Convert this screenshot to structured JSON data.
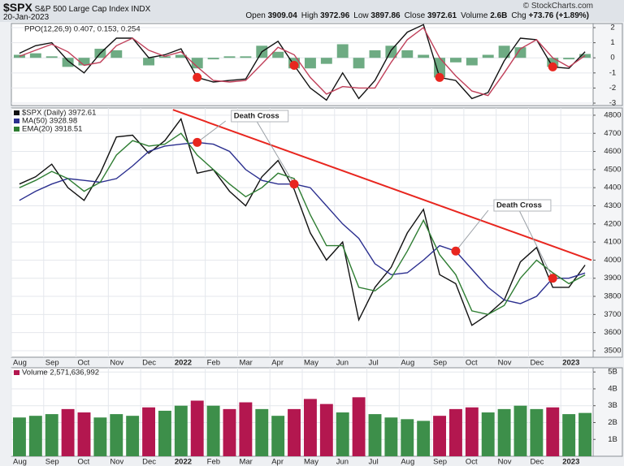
{
  "header": {
    "symbol": "$SPX",
    "name": "S&P 500 Large Cap Index",
    "exchange": "INDX",
    "date": "20-Jan-2023",
    "copyright": "© StockCharts.com",
    "quote": [
      {
        "label": "Open",
        "value": "3909.04"
      },
      {
        "label": "High",
        "value": "3972.96"
      },
      {
        "label": "Low",
        "value": "3897.86"
      },
      {
        "label": "Close",
        "value": "3972.61"
      },
      {
        "label": "Volume",
        "value": "2.6B"
      },
      {
        "label": "Chg",
        "value": "+73.76 (+1.89%)"
      }
    ]
  },
  "chart_data": [
    {
      "type": "line",
      "title": "PPO(12,26,9) 0.407, 0.153, 0.254",
      "ylim": [
        -3.16,
        2.27
      ],
      "yticks": [
        2,
        1,
        0,
        -1,
        -2,
        -3
      ],
      "grid": true,
      "markers": [
        11,
        17,
        26,
        33
      ],
      "marker_color": "#e8261f",
      "series": [
        {
          "name": "PPO",
          "style": "line",
          "color": "#111111",
          "values": [
            0.3,
            0.8,
            1.0,
            -0.2,
            -1.0,
            0.3,
            1.3,
            1.3,
            0.0,
            0.2,
            0.6,
            -1.3,
            -1.6,
            -1.5,
            -1.4,
            0.4,
            1.1,
            -0.5,
            -2.0,
            -2.8,
            -1.0,
            -2.7,
            -1.5,
            0.5,
            1.7,
            2.2,
            -1.3,
            -1.5,
            -2.7,
            -2.3,
            -0.2,
            1.3,
            1.2,
            -0.6,
            -0.7,
            0.407
          ]
        },
        {
          "name": "Signal",
          "style": "line",
          "color": "#c0405a",
          "values": [
            0.1,
            0.5,
            0.9,
            0.4,
            -0.5,
            -0.3,
            0.8,
            1.3,
            0.5,
            0.1,
            0.4,
            -0.6,
            -1.5,
            -1.6,
            -1.5,
            -0.4,
            0.7,
            0.2,
            -1.3,
            -2.4,
            -1.9,
            -2.0,
            -2.0,
            -0.3,
            1.2,
            2.0,
            0.0,
            -1.2,
            -2.2,
            -2.5,
            -1.0,
            0.6,
            1.2,
            0.0,
            -0.6,
            0.153
          ]
        },
        {
          "name": "Histogram",
          "style": "histogram",
          "color": "#3d8f5a",
          "values": [
            0.2,
            0.3,
            0.1,
            -0.6,
            -0.5,
            0.6,
            0.5,
            0,
            -0.5,
            0.1,
            0.2,
            -0.7,
            -0.1,
            0.1,
            0.1,
            0.8,
            0.4,
            -0.7,
            -0.7,
            -0.4,
            0.9,
            -0.7,
            0.5,
            0.8,
            0.5,
            0.2,
            -1.3,
            -0.3,
            -0.5,
            0.2,
            0.8,
            0.7,
            0,
            -0.6,
            -0.1,
            0.254
          ]
        }
      ]
    },
    {
      "type": "line",
      "title": "$SPX (Daily) 3972.61",
      "categories": [
        "Aug",
        null,
        "Sep",
        null,
        "Oct",
        null,
        "Nov",
        null,
        "Dec",
        null,
        "2022",
        null,
        "Feb",
        null,
        "Mar",
        null,
        "Apr",
        null,
        "May",
        null,
        "Jun",
        null,
        "Jul",
        null,
        "Aug",
        null,
        "Sep",
        null,
        "Oct",
        null,
        "Nov",
        null,
        "Dec",
        null,
        "2023",
        null
      ],
      "ylim": [
        3464,
        4840
      ],
      "yticks": [
        3500,
        3600,
        3700,
        3800,
        3900,
        4000,
        4100,
        4200,
        4300,
        4400,
        4500,
        4600,
        4700,
        4800
      ],
      "grid": true,
      "series": [
        {
          "name": "$SPX (Daily) 3972.61",
          "color": "#111111",
          "values": [
            4420,
            4460,
            4530,
            4400,
            4330,
            4480,
            4680,
            4690,
            4590,
            4660,
            4780,
            4480,
            4500,
            4380,
            4300,
            4460,
            4550,
            4390,
            4150,
            4000,
            4100,
            3670,
            3850,
            3960,
            4150,
            4280,
            3920,
            3870,
            3640,
            3700,
            3780,
            3990,
            4070,
            3850,
            3850,
            3972.61
          ]
        },
        {
          "name": "MA(50) 3928.98",
          "color": "#2b2f8f",
          "values": [
            4330,
            4380,
            4420,
            4450,
            4440,
            4430,
            4450,
            4520,
            4600,
            4630,
            4640,
            4650,
            4640,
            4600,
            4500,
            4440,
            4420,
            4420,
            4400,
            4300,
            4200,
            4120,
            3980,
            3920,
            3930,
            4000,
            4080,
            4050,
            3950,
            3850,
            3780,
            3760,
            3800,
            3900,
            3900,
            3928.98
          ]
        },
        {
          "name": "EMA(20) 3918.51",
          "color": "#2e7d32",
          "values": [
            4400,
            4440,
            4490,
            4450,
            4380,
            4430,
            4580,
            4660,
            4630,
            4640,
            4700,
            4580,
            4500,
            4420,
            4350,
            4400,
            4480,
            4450,
            4250,
            4080,
            4080,
            3850,
            3830,
            3900,
            4050,
            4220,
            4030,
            3920,
            3720,
            3700,
            3750,
            3900,
            4000,
            3930,
            3870,
            3918.51
          ]
        }
      ],
      "trendline": {
        "x": [
          9.5,
          35.4
        ],
        "y": [
          4830,
          4000
        ],
        "color": "#e8261f"
      },
      "annotations": [
        {
          "text": "Death Cross",
          "points": [
            11,
            17
          ]
        },
        {
          "text": "Death Cross",
          "points": [
            27,
            33
          ]
        }
      ],
      "marker_color": "#e8261f"
    },
    {
      "type": "bar",
      "title": "Volume 2,571,636,992",
      "categories": [
        "Aug",
        null,
        "Sep",
        null,
        "Oct",
        null,
        "Nov",
        null,
        "Dec",
        null,
        "2022",
        null,
        "Feb",
        null,
        "Mar",
        null,
        "Apr",
        null,
        "May",
        null,
        "Jun",
        null,
        "Jul",
        null,
        "Aug",
        null,
        "Sep",
        null,
        "Oct",
        null,
        "Nov",
        null,
        "Dec",
        null,
        "2023",
        null
      ],
      "ylim": [
        0,
        5.25
      ],
      "yticks": [
        {
          "value": 1,
          "label": "1B"
        },
        {
          "value": 2,
          "label": "2B"
        },
        {
          "value": 3,
          "label": "3B"
        },
        {
          "value": 4,
          "label": "4B"
        },
        {
          "value": 5,
          "label": "5B"
        }
      ],
      "grid": true,
      "up_color": "#3d8f4a",
      "down_color": "#b3174f",
      "values": [
        2.3,
        2.4,
        2.5,
        2.8,
        2.6,
        2.3,
        2.5,
        2.4,
        2.9,
        2.7,
        3.0,
        3.3,
        3.0,
        2.8,
        3.2,
        2.8,
        2.4,
        2.8,
        3.4,
        3.1,
        2.6,
        3.5,
        2.5,
        2.3,
        2.2,
        2.1,
        2.4,
        2.8,
        2.9,
        2.6,
        2.8,
        3.0,
        2.8,
        2.9,
        2.5,
        2.57
      ]
    }
  ]
}
